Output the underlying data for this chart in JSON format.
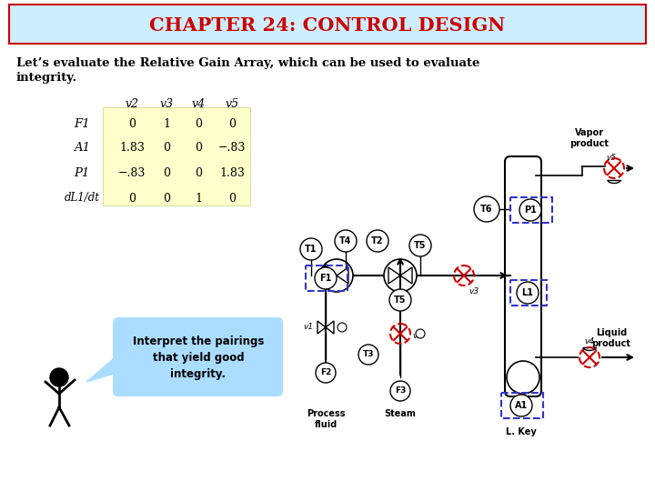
{
  "title": "CHAPTER 24: CONTROL DESIGN",
  "title_color": "#cc0000",
  "title_bg": "#cceeff",
  "body_text_line1": "Let’s evaluate the Relative Gain Array, which can be used to evaluate",
  "body_text_line2": "integrity.",
  "matrix_rows": [
    "F1",
    "A1",
    "P1",
    "dL1/dt"
  ],
  "matrix_cols": [
    "v2",
    "v3",
    "v4",
    "v5"
  ],
  "matrix_values": [
    [
      "0",
      "1",
      "0",
      "0"
    ],
    [
      "1.83",
      "0",
      "0",
      "−.83"
    ],
    [
      "−.83",
      "0",
      "0",
      "1.83"
    ],
    [
      "0",
      "0",
      "1",
      "0"
    ]
  ],
  "matrix_bg": "#ffffcc",
  "bubble_text": "Interpret the pairings\nthat yield good\nintegrity.",
  "bubble_bg": "#aaddff",
  "bg_color": "#ffffff"
}
